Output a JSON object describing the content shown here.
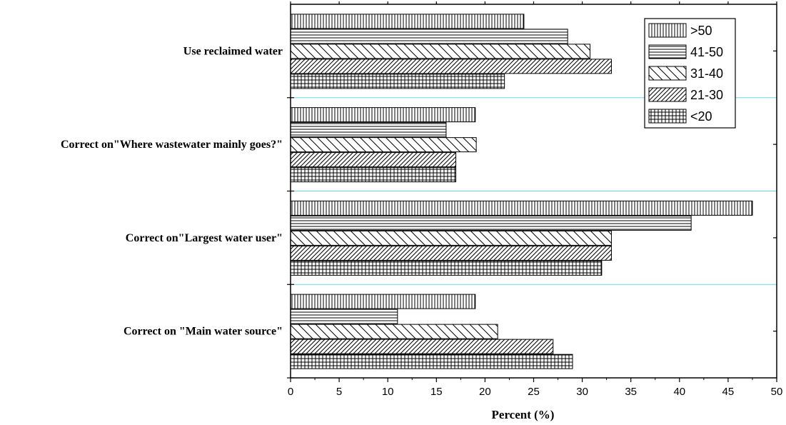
{
  "chart_data": {
    "type": "bar",
    "orientation": "horizontal",
    "categories": [
      "Correct on \"Main water source\"",
      "Correct on\"Largest water user\"",
      "Correct on\"Where wastewater mainly goes?\"",
      "Use reclaimed water"
    ],
    "series": [
      {
        "name": ">50",
        "pattern": "vertical-lines",
        "values": [
          19,
          47.5,
          19,
          24
        ]
      },
      {
        "name": "41-50",
        "pattern": "horizontal-lines",
        "values": [
          11,
          41.2,
          16,
          28.5
        ]
      },
      {
        "name": "31-40",
        "pattern": "back-diagonal",
        "values": [
          21.3,
          33,
          19.1,
          30.8
        ]
      },
      {
        "name": "21-30",
        "pattern": "forward-diagonal",
        "values": [
          27,
          33,
          17,
          33
        ]
      },
      {
        "name": "<20",
        "pattern": "grid",
        "values": [
          29,
          32,
          17,
          22
        ]
      }
    ],
    "xlabel": "Percent (%)",
    "ylabel": "",
    "xlim": [
      0,
      50
    ],
    "xticks": [
      "0",
      "5",
      "10",
      "15",
      "20",
      "25",
      "30",
      "35",
      "40",
      "45",
      "50"
    ],
    "legend_position": "top-right",
    "separator_color": "#66d9e8",
    "bar_color": "#000000"
  }
}
